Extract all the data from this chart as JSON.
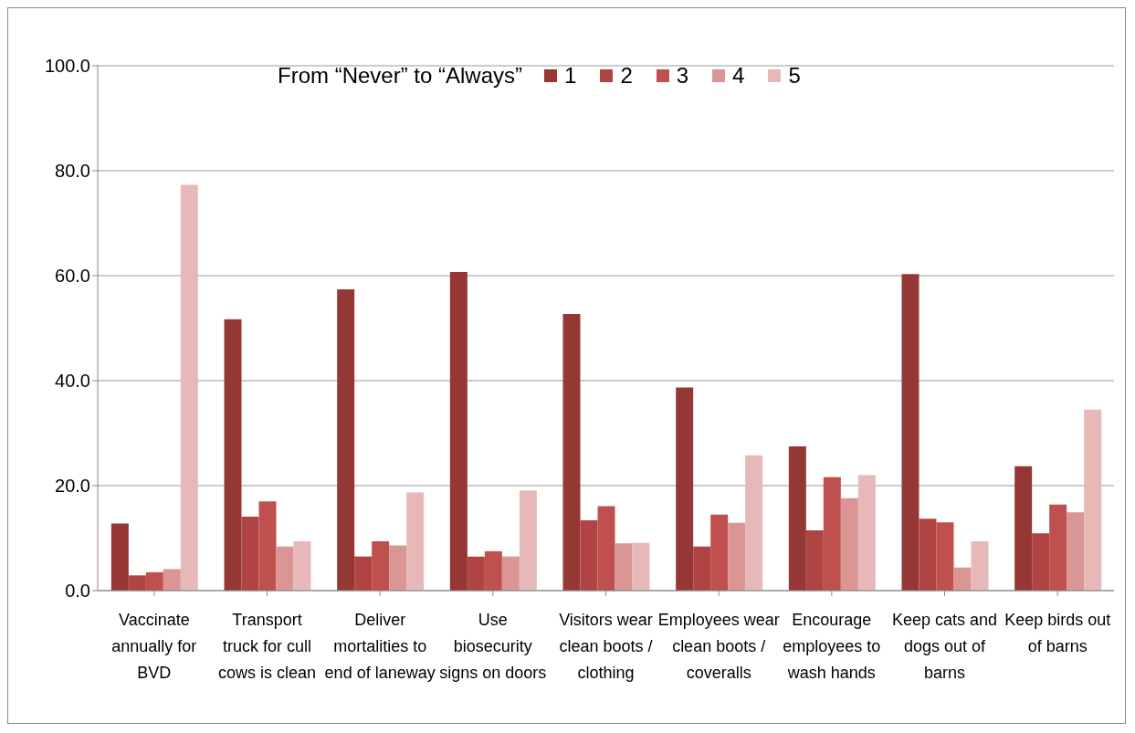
{
  "chart_data": {
    "type": "bar",
    "legend_title": "From “Never” to “Always”",
    "categories": [
      "Vaccinate annually for BVD",
      "Transport truck for cull cows is clean",
      "Deliver mortalities to end of laneway",
      "Use biosecurity signs on doors",
      "Visitors wear clean boots / clothing",
      "Employees wear clean boots / coveralls",
      "Encourage employees to wash hands",
      "Keep cats and dogs out of barns",
      "Keep birds out of barns"
    ],
    "series": [
      {
        "name": "1",
        "color": "#953735",
        "values": [
          12.8,
          51.7,
          57.4,
          60.7,
          52.7,
          38.7,
          27.5,
          60.3,
          23.7
        ]
      },
      {
        "name": "2",
        "color": "#b04442",
        "values": [
          2.9,
          14.1,
          6.5,
          6.5,
          13.4,
          8.4,
          11.5,
          13.7,
          10.9
        ]
      },
      {
        "name": "3",
        "color": "#c0504d",
        "values": [
          3.5,
          17.0,
          9.4,
          7.5,
          16.1,
          14.5,
          21.6,
          13.0,
          16.4
        ]
      },
      {
        "name": "4",
        "color": "#d99694",
        "values": [
          4.1,
          8.4,
          8.6,
          6.5,
          9.0,
          12.9,
          17.6,
          4.4,
          14.9
        ]
      },
      {
        "name": "5",
        "color": "#e6b9b8",
        "values": [
          77.3,
          9.4,
          18.7,
          19.1,
          9.1,
          25.8,
          22.0,
          9.4,
          34.5
        ]
      }
    ],
    "ylim": [
      0,
      100
    ],
    "yticks": [
      {
        "value": 0,
        "label": "0.0"
      },
      {
        "value": 20,
        "label": "20.0"
      },
      {
        "value": 40,
        "label": "40.0"
      },
      {
        "value": 60,
        "label": "60.0"
      },
      {
        "value": 80,
        "label": "80.0"
      },
      {
        "value": 100,
        "label": "100.0"
      }
    ],
    "grid": "y",
    "legend": "top"
  }
}
